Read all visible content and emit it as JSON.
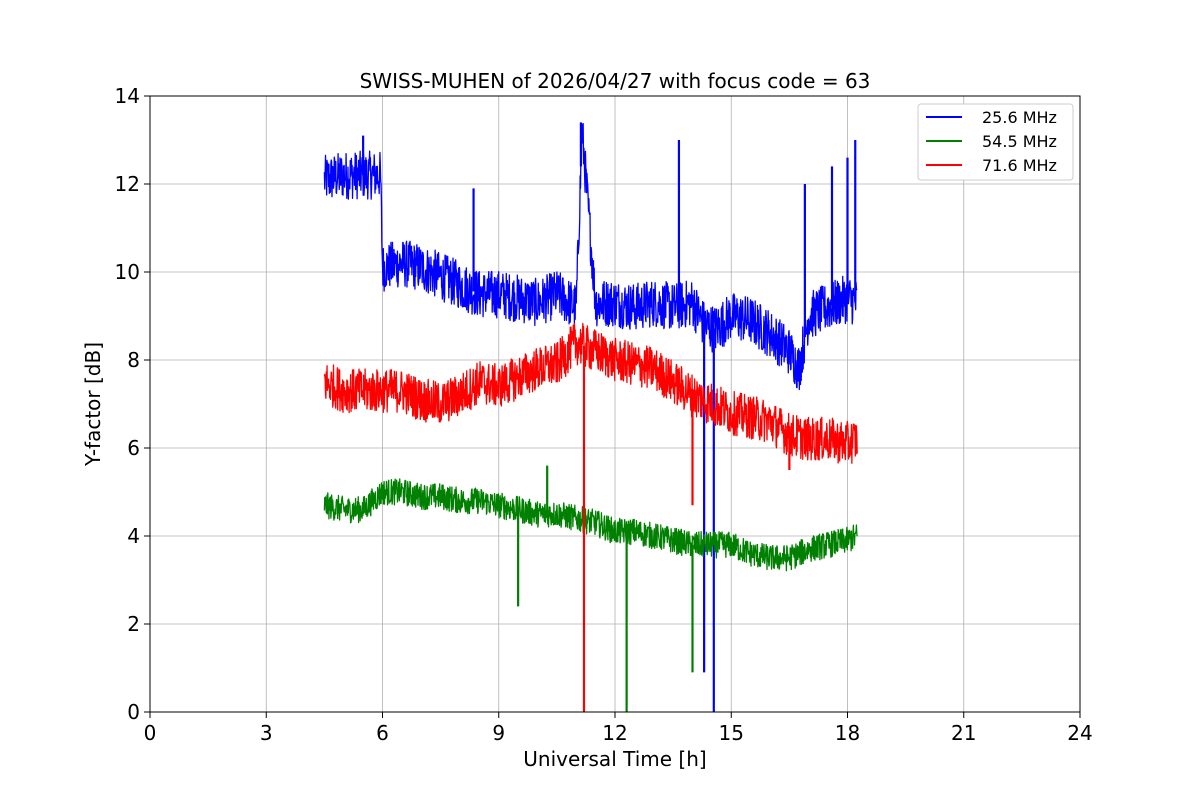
{
  "chart_data": {
    "type": "line",
    "title": "SWISS-MUHEN of 2026/04/27 with focus code = 63",
    "xlabel": "Universal Time [h]",
    "ylabel": "Y-factor [dB]",
    "xlim": [
      0,
      24
    ],
    "ylim": [
      0,
      14
    ],
    "xticks": [
      0,
      3,
      6,
      9,
      12,
      15,
      18,
      21,
      24
    ],
    "yticks": [
      0,
      2,
      4,
      6,
      8,
      10,
      12,
      14
    ],
    "grid": true,
    "legend_position": "top-right",
    "series": [
      {
        "name": "25.6 MHz",
        "color": "#0000ff",
        "x": [
          4.5,
          5.0,
          5.5,
          5.95,
          6.0,
          6.5,
          7.0,
          7.5,
          8.0,
          8.5,
          9.0,
          9.5,
          10.0,
          10.5,
          11.0,
          11.15,
          11.5,
          12.0,
          12.5,
          13.0,
          13.5,
          14.0,
          14.3,
          14.55,
          14.6,
          15.0,
          15.5,
          16.0,
          16.5,
          16.75,
          17.0,
          17.5,
          18.0,
          18.25
        ],
        "y": [
          12.1,
          12.2,
          12.2,
          12.2,
          10.1,
          10.2,
          10.1,
          9.9,
          9.7,
          9.5,
          9.5,
          9.4,
          9.3,
          9.5,
          9.2,
          13.2,
          9.3,
          9.3,
          9.2,
          9.3,
          9.2,
          9.3,
          8.8,
          0.0,
          8.7,
          9.0,
          8.9,
          8.6,
          8.2,
          7.8,
          9.0,
          9.2,
          9.4,
          9.3
        ],
        "spikes": [
          [
            5.5,
            13.1
          ],
          [
            8.35,
            11.9
          ],
          [
            11.12,
            13.4
          ],
          [
            13.65,
            13.0
          ],
          [
            14.3,
            0.9
          ],
          [
            14.55,
            0.0
          ],
          [
            16.9,
            12.0
          ],
          [
            17.6,
            12.4
          ],
          [
            18.0,
            12.6
          ],
          [
            18.2,
            13.0
          ]
        ]
      },
      {
        "name": "54.5 MHz",
        "color": "#008000",
        "x": [
          4.5,
          5.0,
          5.5,
          6.0,
          6.5,
          7.0,
          7.5,
          8.0,
          8.5,
          9.0,
          9.5,
          10.0,
          10.5,
          11.0,
          11.5,
          12.0,
          12.5,
          13.0,
          13.5,
          14.0,
          14.5,
          15.0,
          15.5,
          16.0,
          16.5,
          17.0,
          17.5,
          18.0,
          18.25
        ],
        "y": [
          4.7,
          4.6,
          4.6,
          5.0,
          5.0,
          4.9,
          4.9,
          4.8,
          4.8,
          4.7,
          4.6,
          4.5,
          4.5,
          4.4,
          4.3,
          4.1,
          4.1,
          4.0,
          3.9,
          3.8,
          3.8,
          3.8,
          3.6,
          3.5,
          3.5,
          3.7,
          3.8,
          3.9,
          4.0
        ],
        "spikes": [
          [
            9.5,
            2.4
          ],
          [
            10.25,
            5.6
          ],
          [
            12.3,
            0.0
          ],
          [
            14.0,
            0.9
          ]
        ]
      },
      {
        "name": "71.6 MHz",
        "color": "#ff0000",
        "x": [
          4.5,
          5.0,
          5.5,
          6.0,
          6.5,
          7.0,
          7.5,
          8.0,
          8.5,
          9.0,
          9.5,
          10.0,
          10.5,
          11.0,
          11.2,
          11.5,
          12.0,
          12.5,
          13.0,
          13.5,
          14.0,
          14.5,
          15.0,
          15.5,
          16.0,
          16.5,
          17.0,
          17.5,
          18.0,
          18.25
        ],
        "y": [
          7.5,
          7.3,
          7.3,
          7.3,
          7.3,
          7.1,
          7.0,
          7.2,
          7.5,
          7.4,
          7.6,
          7.8,
          7.9,
          8.4,
          0.0,
          8.2,
          8.0,
          7.9,
          7.8,
          7.5,
          7.2,
          7.0,
          6.8,
          6.7,
          6.6,
          6.3,
          6.2,
          6.2,
          6.1,
          6.2
        ],
        "spikes": [
          [
            11.2,
            0.0
          ],
          [
            14.0,
            4.7
          ],
          [
            16.5,
            5.5
          ]
        ]
      }
    ]
  }
}
